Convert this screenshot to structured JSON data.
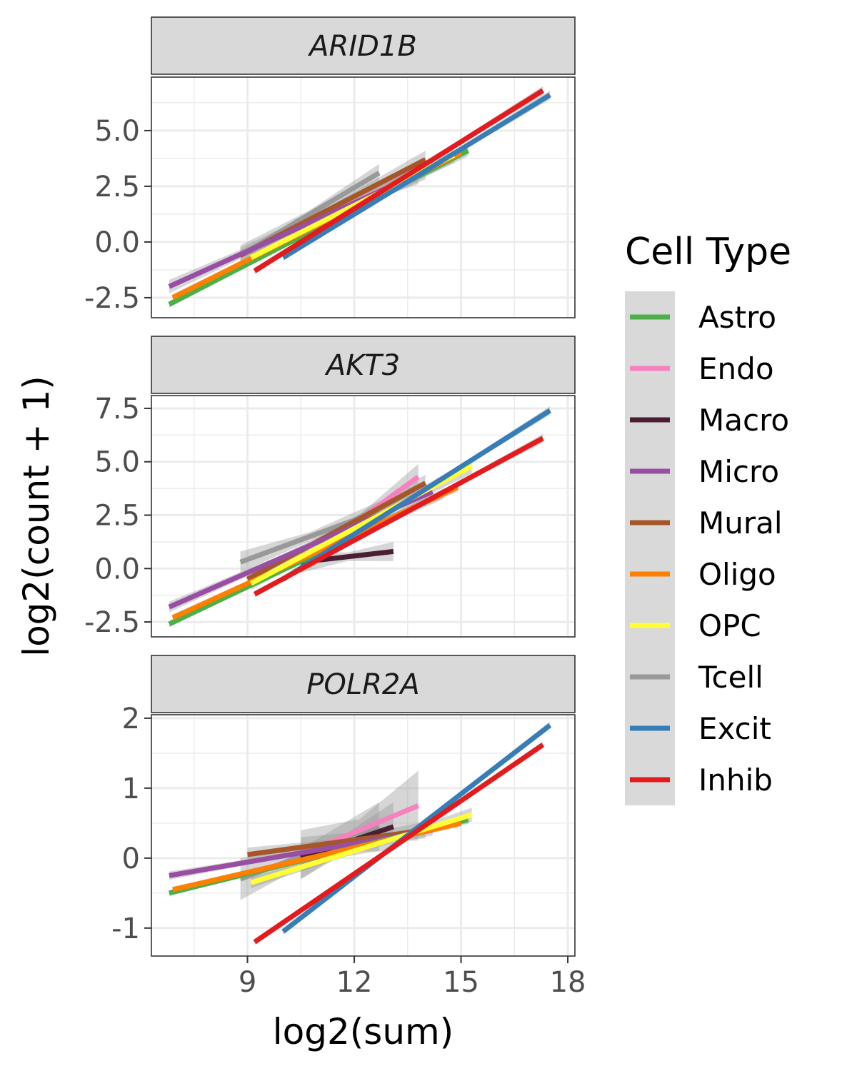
{
  "chart_data": {
    "type": "line",
    "xlabel": "log2(sum)",
    "ylabel": "log2(count + 1)",
    "xlim": [
      6.3,
      18.2
    ],
    "x_ticks": [
      9,
      12,
      15,
      18
    ],
    "legend": {
      "title": "Cell Type",
      "placement": "right",
      "entries": [
        {
          "name": "Astro",
          "color": "#4DAF4A"
        },
        {
          "name": "Endo",
          "color": "#F781BF"
        },
        {
          "name": "Macro",
          "color": "#4A1E33"
        },
        {
          "name": "Micro",
          "color": "#984EA3"
        },
        {
          "name": "Mural",
          "color": "#A65628"
        },
        {
          "name": "Oligo",
          "color": "#FF7F00"
        },
        {
          "name": "OPC",
          "color": "#FFFF33"
        },
        {
          "name": "Tcell",
          "color": "#999999"
        },
        {
          "name": "Excit",
          "color": "#377EB8"
        },
        {
          "name": "Inhib",
          "color": "#E41A1C"
        }
      ]
    },
    "panels": [
      {
        "gene": "ARID1B",
        "ylim": [
          -3.4,
          7.4
        ],
        "y_ticks": [
          -2.5,
          0,
          2.5,
          5
        ],
        "y_tick_labels": [
          "-2.5",
          "0.0",
          "2.5",
          "5.0"
        ],
        "series": [
          {
            "name": "Astro",
            "x": [
              6.8,
              15.2
            ],
            "y": [
              -2.8,
              4.1
            ],
            "se": [
              0.15,
              0.25
            ]
          },
          {
            "name": "Micro",
            "x": [
              6.8,
              14.0
            ],
            "y": [
              -2.0,
              3.2
            ],
            "se": [
              0.3,
              0.4
            ]
          },
          {
            "name": "Oligo",
            "x": [
              6.9,
              15.0
            ],
            "y": [
              -2.5,
              4.0
            ],
            "se": [
              0.15,
              0.2
            ]
          },
          {
            "name": "Mural",
            "x": [
              8.8,
              14.0
            ],
            "y": [
              -0.6,
              3.7
            ],
            "se": [
              0.35,
              0.4
            ]
          },
          {
            "name": "OPC",
            "x": [
              9.1,
              14.8
            ],
            "y": [
              -0.7,
              3.9
            ],
            "se": [
              0.3,
              0.35
            ]
          },
          {
            "name": "Tcell",
            "x": [
              8.8,
              12.7
            ],
            "y": [
              -0.6,
              3.1
            ],
            "se": [
              0.45,
              0.4
            ]
          },
          {
            "name": "Endo",
            "x": [
              10.3,
              13.8
            ],
            "y": [
              0.5,
              3.1
            ],
            "se": [
              0.5,
              0.5
            ]
          },
          {
            "name": "Excit",
            "x": [
              10.0,
              17.5
            ],
            "y": [
              -0.7,
              6.6
            ],
            "se": [
              0.15,
              0.2
            ]
          },
          {
            "name": "Inhib",
            "x": [
              9.2,
              17.3
            ],
            "y": [
              -1.3,
              6.8
            ],
            "se": [
              0.15,
              0.2
            ]
          }
        ]
      },
      {
        "gene": "AKT3",
        "ylim": [
          -3.2,
          8.1
        ],
        "y_ticks": [
          -2.5,
          0,
          2.5,
          5,
          7.5
        ],
        "y_tick_labels": [
          "-2.5",
          "0.0",
          "2.5",
          "5.0",
          "7.5"
        ],
        "series": [
          {
            "name": "Astro",
            "x": [
              6.8,
              14.5
            ],
            "y": [
              -2.6,
              3.5
            ],
            "se": [
              0.15,
              0.25
            ]
          },
          {
            "name": "Micro",
            "x": [
              6.8,
              14.2
            ],
            "y": [
              -1.8,
              3.6
            ],
            "se": [
              0.25,
              0.35
            ]
          },
          {
            "name": "Oligo",
            "x": [
              6.9,
              14.9
            ],
            "y": [
              -2.3,
              3.8
            ],
            "se": [
              0.15,
              0.2
            ]
          },
          {
            "name": "Tcell",
            "x": [
              8.8,
              12.7
            ],
            "y": [
              0.3,
              2.7
            ],
            "se": [
              0.5,
              0.45
            ]
          },
          {
            "name": "Mural",
            "x": [
              9.0,
              14.0
            ],
            "y": [
              -0.5,
              4.0
            ],
            "se": [
              0.35,
              0.4
            ]
          },
          {
            "name": "Endo",
            "x": [
              10.5,
              13.8
            ],
            "y": [
              0.3,
              4.3
            ],
            "se": [
              0.5,
              0.6
            ]
          },
          {
            "name": "Macro",
            "x": [
              10.5,
              13.1
            ],
            "y": [
              0.3,
              0.8
            ],
            "se": [
              0.5,
              0.45
            ]
          },
          {
            "name": "OPC",
            "x": [
              9.1,
              15.3
            ],
            "y": [
              -0.7,
              4.8
            ],
            "se": [
              0.3,
              0.35
            ]
          },
          {
            "name": "Excit",
            "x": [
              10.0,
              17.5
            ],
            "y": [
              -0.5,
              7.4
            ],
            "se": [
              0.15,
              0.2
            ]
          },
          {
            "name": "Inhib",
            "x": [
              9.2,
              17.3
            ],
            "y": [
              -1.2,
              6.1
            ],
            "se": [
              0.15,
              0.2
            ]
          }
        ]
      },
      {
        "gene": "POLR2A",
        "ylim": [
          -1.4,
          2.05
        ],
        "y_ticks": [
          -1,
          0,
          1,
          2
        ],
        "y_tick_labels": [
          "-1",
          "0",
          "1",
          "2"
        ],
        "series": [
          {
            "name": "Astro",
            "x": [
              6.8,
              15.2
            ],
            "y": [
              -0.5,
              0.55
            ],
            "se": [
              0.04,
              0.06
            ]
          },
          {
            "name": "Micro",
            "x": [
              6.8,
              14.2
            ],
            "y": [
              -0.25,
              0.4
            ],
            "se": [
              0.06,
              0.08
            ]
          },
          {
            "name": "Oligo",
            "x": [
              6.9,
              15.0
            ],
            "y": [
              -0.45,
              0.5
            ],
            "se": [
              0.04,
              0.05
            ]
          },
          {
            "name": "Tcell",
            "x": [
              8.8,
              12.7
            ],
            "y": [
              -0.3,
              0.45
            ],
            "se": [
              0.3,
              0.35
            ]
          },
          {
            "name": "Mural",
            "x": [
              9.0,
              14.0
            ],
            "y": [
              0.05,
              0.4
            ],
            "se": [
              0.1,
              0.12
            ]
          },
          {
            "name": "Endo",
            "x": [
              10.5,
              13.8
            ],
            "y": [
              0.05,
              0.75
            ],
            "se": [
              0.35,
              0.5
            ]
          },
          {
            "name": "Macro",
            "x": [
              10.5,
              13.1
            ],
            "y": [
              0.0,
              0.45
            ],
            "se": [
              0.3,
              0.35
            ]
          },
          {
            "name": "OPC",
            "x": [
              9.1,
              15.3
            ],
            "y": [
              -0.35,
              0.62
            ],
            "se": [
              0.08,
              0.1
            ]
          },
          {
            "name": "Excit",
            "x": [
              10.0,
              17.5
            ],
            "y": [
              -1.05,
              1.9
            ],
            "se": [
              0.04,
              0.05
            ]
          },
          {
            "name": "Inhib",
            "x": [
              9.2,
              17.3
            ],
            "y": [
              -1.2,
              1.62
            ],
            "se": [
              0.04,
              0.05
            ]
          }
        ]
      }
    ]
  }
}
